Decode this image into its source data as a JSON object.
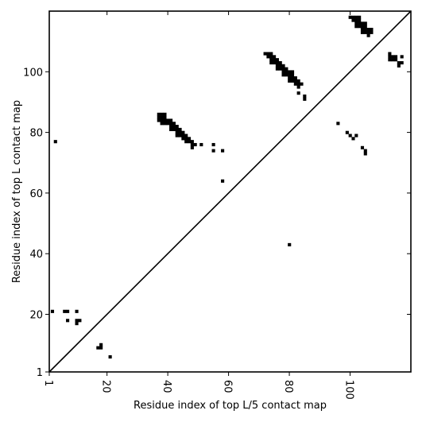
{
  "chart_data": {
    "type": "heatmap",
    "title": "",
    "xlabel": "Residue index of top L/5 contact map",
    "ylabel": "Residue index of top L contact map",
    "xlim": [
      1,
      120
    ],
    "ylim": [
      1,
      120
    ],
    "xticks": [
      1,
      20,
      40,
      60,
      80,
      100
    ],
    "yticks": [
      1,
      20,
      40,
      60,
      80,
      100
    ],
    "diagonal": true,
    "mark_color": "#000000",
    "contacts_upper": [
      [
        72,
        106
      ],
      [
        73,
        106
      ],
      [
        74,
        106
      ],
      [
        73,
        105
      ],
      [
        74,
        105
      ],
      [
        75,
        105
      ],
      [
        74,
        104
      ],
      [
        75,
        104
      ],
      [
        76,
        104
      ],
      [
        74,
        103
      ],
      [
        75,
        103
      ],
      [
        76,
        103
      ],
      [
        77,
        103
      ],
      [
        76,
        102
      ],
      [
        77,
        102
      ],
      [
        78,
        102
      ],
      [
        76,
        101
      ],
      [
        77,
        101
      ],
      [
        78,
        101
      ],
      [
        79,
        101
      ],
      [
        78,
        100
      ],
      [
        79,
        100
      ],
      [
        80,
        100
      ],
      [
        81,
        100
      ],
      [
        78,
        99
      ],
      [
        79,
        99
      ],
      [
        80,
        99
      ],
      [
        81,
        99
      ],
      [
        80,
        98
      ],
      [
        81,
        98
      ],
      [
        82,
        98
      ],
      [
        80,
        97
      ],
      [
        81,
        97
      ],
      [
        82,
        97
      ],
      [
        83,
        97
      ],
      [
        82,
        96
      ],
      [
        83,
        96
      ],
      [
        84,
        96
      ],
      [
        83,
        95
      ],
      [
        83,
        93
      ],
      [
        85,
        92
      ],
      [
        85,
        91
      ],
      [
        100,
        118
      ],
      [
        101,
        118
      ],
      [
        102,
        118
      ],
      [
        103,
        118
      ],
      [
        101,
        117
      ],
      [
        102,
        117
      ],
      [
        103,
        117
      ],
      [
        102,
        116
      ],
      [
        103,
        116
      ],
      [
        104,
        116
      ],
      [
        105,
        116
      ],
      [
        102,
        115
      ],
      [
        103,
        115
      ],
      [
        104,
        115
      ],
      [
        105,
        115
      ],
      [
        104,
        114
      ],
      [
        105,
        114
      ],
      [
        106,
        114
      ],
      [
        107,
        114
      ],
      [
        104,
        113
      ],
      [
        105,
        113
      ],
      [
        106,
        113
      ],
      [
        107,
        113
      ],
      [
        106,
        112
      ],
      [
        113,
        106
      ],
      [
        113,
        105
      ],
      [
        114,
        105
      ],
      [
        115,
        105
      ],
      [
        117,
        105
      ],
      [
        113,
        104
      ],
      [
        114,
        104
      ],
      [
        115,
        104
      ],
      [
        116,
        103
      ],
      [
        117,
        103
      ],
      [
        116,
        102
      ]
    ],
    "contacts_lower": [
      [
        37,
        86
      ],
      [
        38,
        86
      ],
      [
        39,
        86
      ],
      [
        37,
        85
      ],
      [
        38,
        85
      ],
      [
        39,
        85
      ],
      [
        37,
        84
      ],
      [
        38,
        84
      ],
      [
        39,
        84
      ],
      [
        40,
        84
      ],
      [
        41,
        84
      ],
      [
        38,
        83
      ],
      [
        39,
        83
      ],
      [
        40,
        83
      ],
      [
        41,
        83
      ],
      [
        42,
        83
      ],
      [
        41,
        82
      ],
      [
        42,
        82
      ],
      [
        43,
        82
      ],
      [
        41,
        81
      ],
      [
        42,
        81
      ],
      [
        43,
        81
      ],
      [
        44,
        81
      ],
      [
        43,
        80
      ],
      [
        44,
        80
      ],
      [
        45,
        80
      ],
      [
        43,
        79
      ],
      [
        44,
        79
      ],
      [
        45,
        79
      ],
      [
        46,
        79
      ],
      [
        45,
        78
      ],
      [
        46,
        78
      ],
      [
        47,
        78
      ],
      [
        46,
        77
      ],
      [
        47,
        77
      ],
      [
        48,
        77
      ],
      [
        48,
        76
      ],
      [
        49,
        76
      ],
      [
        51,
        76
      ],
      [
        55,
        76
      ],
      [
        48,
        75
      ],
      [
        55,
        74
      ],
      [
        58,
        74
      ],
      [
        3,
        77
      ],
      [
        58,
        64
      ],
      [
        80,
        43
      ],
      [
        96,
        83
      ],
      [
        99,
        80
      ],
      [
        100,
        79
      ],
      [
        102,
        79
      ],
      [
        101,
        78
      ],
      [
        104,
        75
      ],
      [
        105,
        74
      ],
      [
        105,
        73
      ],
      [
        2,
        21
      ],
      [
        6,
        21
      ],
      [
        7,
        21
      ],
      [
        10,
        21
      ],
      [
        7,
        18
      ],
      [
        10,
        18
      ],
      [
        11,
        18
      ],
      [
        10,
        17
      ],
      [
        18,
        10
      ],
      [
        17,
        9
      ],
      [
        18,
        9
      ],
      [
        21,
        6
      ]
    ]
  }
}
